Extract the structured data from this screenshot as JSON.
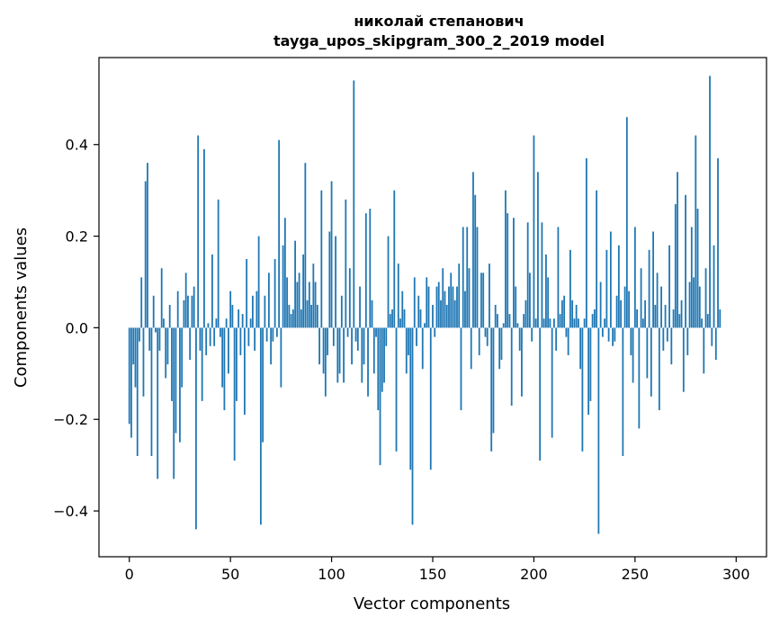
{
  "chart_data": {
    "type": "bar",
    "title_line1": "николай степанович",
    "title_line2": "tayga_upos_skipgram_300_2_2019 model",
    "xlabel": "Vector components",
    "ylabel": "Components values",
    "xlim": [
      -15,
      315
    ],
    "ylim": [
      -0.5,
      0.59
    ],
    "x_ticks": [
      0,
      50,
      100,
      150,
      200,
      250,
      300
    ],
    "x_tick_labels": [
      "0",
      "50",
      "100",
      "150",
      "200",
      "250",
      "300"
    ],
    "y_ticks": [
      -0.4,
      -0.2,
      0.0,
      0.2,
      0.4
    ],
    "y_tick_labels": [
      "−0.4",
      "−0.2",
      "0.0",
      "0.2",
      "0.4"
    ],
    "bar_color": "#1f77b4",
    "grid": false,
    "values": [
      -0.21,
      -0.24,
      -0.08,
      -0.13,
      -0.28,
      -0.03,
      0.11,
      -0.15,
      0.32,
      0.36,
      -0.05,
      -0.28,
      0.07,
      -0.01,
      -0.33,
      -0.05,
      0.13,
      0.02,
      -0.11,
      -0.08,
      0.05,
      -0.16,
      -0.33,
      -0.23,
      0.08,
      -0.25,
      -0.13,
      0.06,
      0.12,
      0.07,
      -0.07,
      0.07,
      0.09,
      -0.44,
      0.42,
      -0.05,
      -0.16,
      0.39,
      -0.06,
      0.01,
      -0.04,
      0.16,
      -0.04,
      0.02,
      0.28,
      -0.02,
      -0.13,
      -0.18,
      0.02,
      -0.1,
      0.08,
      0.05,
      -0.29,
      -0.16,
      0.04,
      -0.06,
      0.03,
      -0.19,
      0.15,
      -0.04,
      0.02,
      0.07,
      -0.05,
      0.08,
      0.2,
      -0.43,
      -0.25,
      0.07,
      -0.03,
      0.12,
      -0.08,
      -0.03,
      0.15,
      -0.02,
      0.41,
      -0.13,
      0.18,
      0.24,
      0.11,
      0.05,
      0.03,
      0.04,
      0.19,
      0.1,
      0.12,
      0.04,
      0.16,
      0.36,
      0.06,
      0.1,
      0.05,
      0.14,
      0.1,
      0.05,
      -0.08,
      0.3,
      -0.1,
      -0.15,
      -0.06,
      0.21,
      0.32,
      -0.04,
      0.2,
      -0.12,
      -0.1,
      0.07,
      -0.12,
      0.28,
      -0.02,
      0.13,
      -0.08,
      0.54,
      -0.03,
      -0.05,
      0.09,
      -0.12,
      -0.08,
      0.25,
      -0.15,
      0.26,
      0.06,
      -0.1,
      -0.02,
      -0.18,
      -0.3,
      -0.14,
      -0.12,
      -0.04,
      0.2,
      0.03,
      0.04,
      0.3,
      -0.27,
      0.14,
      0.02,
      0.08,
      0.04,
      -0.1,
      -0.06,
      -0.31,
      -0.43,
      0.11,
      -0.04,
      0.07,
      0.04,
      -0.09,
      0.01,
      0.11,
      0.09,
      -0.31,
      0.05,
      -0.02,
      0.09,
      0.1,
      0.06,
      0.13,
      0.08,
      0.05,
      0.09,
      0.12,
      0.09,
      0.06,
      0.09,
      0.14,
      -0.18,
      0.22,
      0.08,
      0.22,
      0.13,
      -0.09,
      0.34,
      0.29,
      0.22,
      -0.06,
      0.12,
      0.12,
      -0.02,
      -0.04,
      0.14,
      -0.27,
      -0.23,
      0.05,
      0.03,
      -0.09,
      -0.07,
      0.01,
      0.3,
      0.25,
      0.03,
      -0.17,
      0.24,
      0.09,
      0.01,
      -0.05,
      -0.15,
      0.03,
      0.06,
      0.23,
      0.12,
      -0.03,
      0.42,
      0.02,
      0.34,
      -0.29,
      0.23,
      0.02,
      0.16,
      0.11,
      0.02,
      -0.24,
      0.02,
      -0.05,
      0.22,
      0.03,
      0.06,
      0.07,
      -0.02,
      -0.06,
      0.17,
      0.06,
      0.02,
      0.05,
      0.02,
      -0.09,
      -0.27,
      0.02,
      0.37,
      -0.19,
      -0.16,
      0.03,
      0.04,
      0.3,
      -0.45,
      0.1,
      -0.02,
      0.02,
      0.17,
      -0.03,
      0.21,
      -0.04,
      -0.03,
      0.07,
      0.18,
      0.06,
      -0.28,
      0.09,
      0.46,
      0.08,
      -0.06,
      -0.12,
      0.22,
      0.04,
      -0.22,
      0.13,
      0.02,
      0.06,
      -0.11,
      0.17,
      -0.15,
      0.21,
      0.05,
      0.12,
      -0.18,
      0.09,
      -0.05,
      0.05,
      -0.03,
      0.18,
      -0.08,
      0.04,
      0.27,
      0.34,
      0.03,
      0.06,
      -0.14,
      0.29,
      -0.06,
      0.1,
      0.22,
      0.11,
      0.42,
      0.26,
      0.09,
      0.02,
      -0.1,
      0.13,
      0.03,
      0.55,
      -0.04,
      0.18,
      -0.07,
      0.37,
      0.04
    ]
  }
}
